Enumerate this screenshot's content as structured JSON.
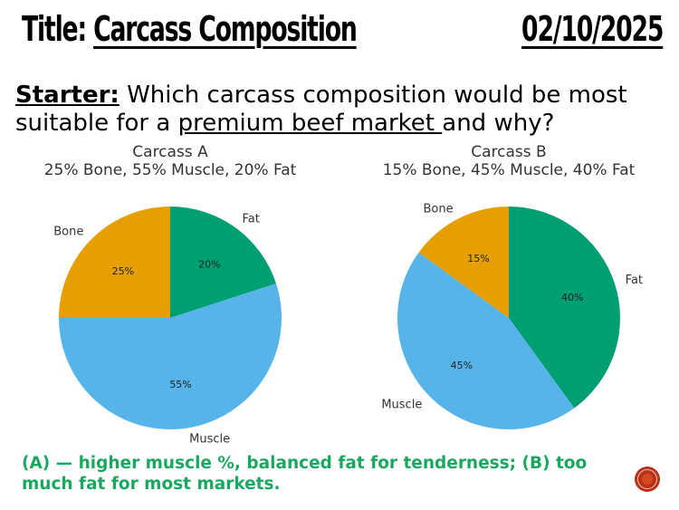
{
  "header": {
    "title_prefix": "Title:",
    "title_text": "Carcass Composition",
    "date": "02/10/2025"
  },
  "starter": {
    "label": "Starter:",
    "text_before": " Which carcass composition would be most suitable for a ",
    "text_underlined": "premium beef market ",
    "text_after": "and why?"
  },
  "answer": "(A) — higher muscle %, balanced fat for tenderness; (B) too much fat for most markets.",
  "chart_data": [
    {
      "type": "pie",
      "title": "Carcass A",
      "subtitle": "25% Bone, 55% Muscle, 20% Fat",
      "slices": [
        {
          "label": "Fat",
          "value": 20,
          "pct_label": "20%",
          "color": "#009e73"
        },
        {
          "label": "Muscle",
          "value": 55,
          "pct_label": "55%",
          "color": "#56b4e9"
        },
        {
          "label": "Bone",
          "value": 25,
          "pct_label": "25%",
          "color": "#e69f00"
        }
      ]
    },
    {
      "type": "pie",
      "title": "Carcass B",
      "subtitle": "15% Bone, 45% Muscle, 40% Fat",
      "slices": [
        {
          "label": "Fat",
          "value": 40,
          "pct_label": "40%",
          "color": "#009e73"
        },
        {
          "label": "Muscle",
          "value": 45,
          "pct_label": "45%",
          "color": "#56b4e9"
        },
        {
          "label": "Bone",
          "value": 15,
          "pct_label": "15%",
          "color": "#e69f00"
        }
      ]
    }
  ],
  "logo_icon": "round-red-badge-icon"
}
